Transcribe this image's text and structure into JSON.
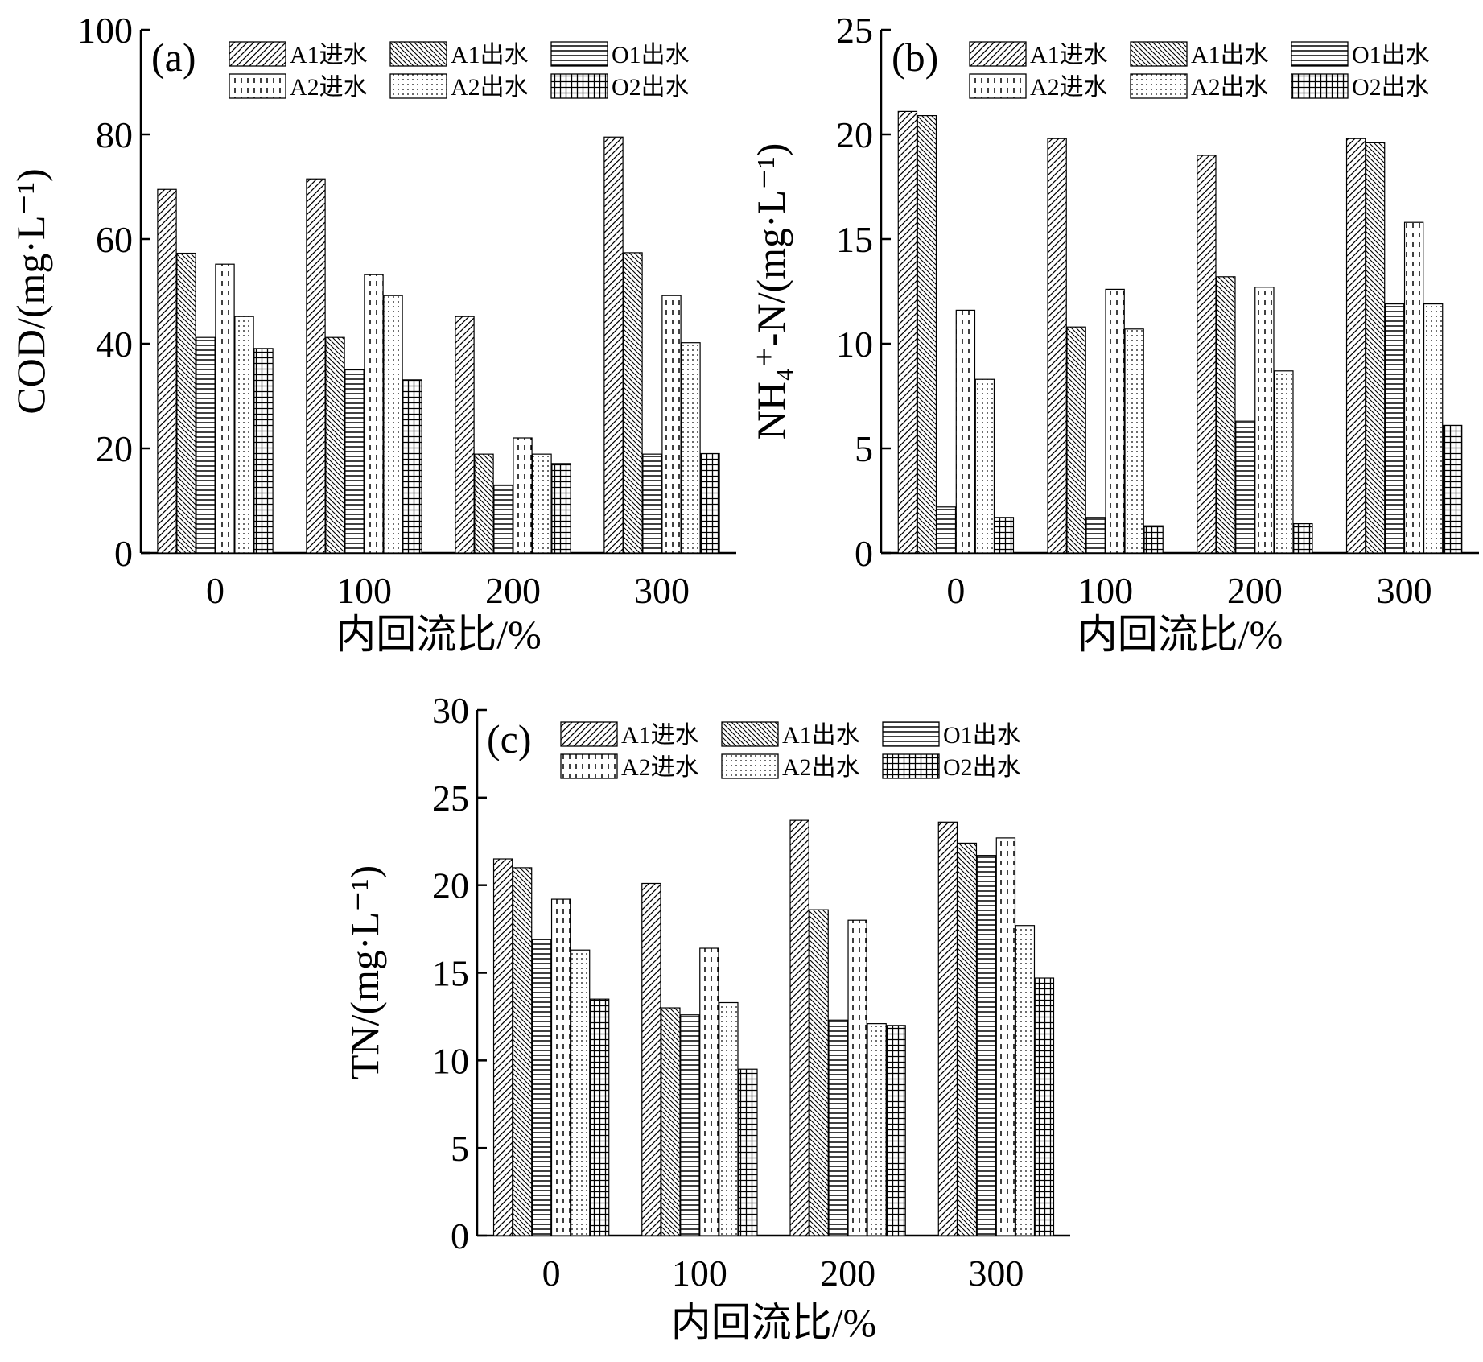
{
  "series_names": [
    "A1进水",
    "A1出水",
    "O1出水",
    "A2进水",
    "A2出水",
    "O2出水"
  ],
  "series_patterns": [
    "diag-fwd",
    "diag-back",
    "horiz",
    "vdash",
    "dots",
    "grid"
  ],
  "chart_data": [
    {
      "type": "bar",
      "label": "(a)",
      "categories": [
        "0",
        "100",
        "200",
        "300"
      ],
      "xlabel": "内回流比/%",
      "ylabel": "COD/(mg·L⁻¹)",
      "ylim": [
        0,
        100
      ],
      "yticks": [
        0,
        20,
        40,
        60,
        80,
        100
      ],
      "legend": "top",
      "series": [
        {
          "name": "A1进水",
          "values": [
            69.5,
            71.5,
            45.2,
            79.5
          ]
        },
        {
          "name": "A1出水",
          "values": [
            57.3,
            41.2,
            18.9,
            57.4
          ]
        },
        {
          "name": "O1出水",
          "values": [
            41.2,
            35.0,
            13.0,
            18.9
          ]
        },
        {
          "name": "A2进水",
          "values": [
            55.2,
            53.2,
            22.0,
            49.2
          ]
        },
        {
          "name": "A2出水",
          "values": [
            45.2,
            49.2,
            18.9,
            40.2
          ]
        },
        {
          "name": "O2出水",
          "values": [
            39.1,
            33.1,
            17.1,
            19.0
          ]
        }
      ]
    },
    {
      "type": "bar",
      "label": "(b)",
      "categories": [
        "0",
        "100",
        "200",
        "300"
      ],
      "xlabel": "内回流比/%",
      "ylabel": "NH₄⁺-N/(mg·L⁻¹)",
      "ylim": [
        0,
        25
      ],
      "yticks": [
        0,
        5,
        10,
        15,
        20,
        25
      ],
      "legend": "top",
      "series": [
        {
          "name": "A1进水",
          "values": [
            21.1,
            19.8,
            19.0,
            19.8
          ]
        },
        {
          "name": "A1出水",
          "values": [
            20.9,
            10.8,
            13.2,
            19.6
          ]
        },
        {
          "name": "O1出水",
          "values": [
            2.2,
            1.7,
            6.3,
            11.9
          ]
        },
        {
          "name": "A2进水",
          "values": [
            11.6,
            12.6,
            12.7,
            15.8
          ]
        },
        {
          "name": "A2出水",
          "values": [
            8.3,
            10.7,
            8.7,
            11.9
          ]
        },
        {
          "name": "O2出水",
          "values": [
            1.7,
            1.3,
            1.4,
            6.1
          ]
        }
      ]
    },
    {
      "type": "bar",
      "label": "(c)",
      "categories": [
        "0",
        "100",
        "200",
        "300"
      ],
      "xlabel": "内回流比/%",
      "ylabel": "TN/(mg·L⁻¹)",
      "ylim": [
        0,
        30
      ],
      "yticks": [
        0,
        5,
        10,
        15,
        20,
        25,
        30
      ],
      "legend": "top",
      "series": [
        {
          "name": "A1进水",
          "values": [
            21.5,
            20.1,
            23.7,
            23.6
          ]
        },
        {
          "name": "A1出水",
          "values": [
            21.0,
            13.0,
            18.6,
            22.4
          ]
        },
        {
          "name": "O1出水",
          "values": [
            16.9,
            12.6,
            12.3,
            21.7
          ]
        },
        {
          "name": "A2进水",
          "values": [
            19.2,
            16.4,
            18.0,
            22.7
          ]
        },
        {
          "name": "A2出水",
          "values": [
            16.3,
            13.3,
            12.1,
            17.7
          ]
        },
        {
          "name": "O2出水",
          "values": [
            13.5,
            9.5,
            12.0,
            14.7
          ]
        }
      ]
    }
  ]
}
